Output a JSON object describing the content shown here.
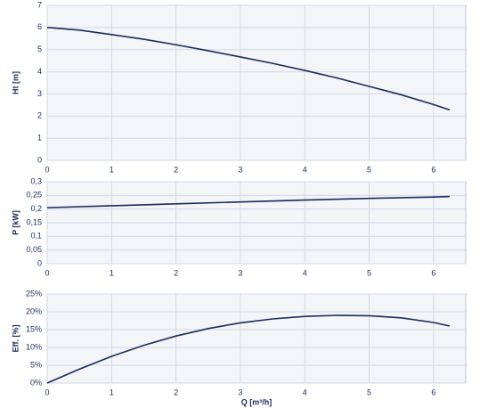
{
  "chart_data": [
    {
      "type": "line",
      "ylabel": "Ht [m]",
      "x": [
        0,
        0.5,
        1,
        1.5,
        2,
        2.5,
        3,
        3.5,
        4,
        4.5,
        5,
        5.5,
        6,
        6.25
      ],
      "values": [
        6.0,
        5.88,
        5.68,
        5.47,
        5.22,
        4.95,
        4.67,
        4.38,
        4.06,
        3.72,
        3.34,
        2.96,
        2.52,
        2.28
      ],
      "color": "#1b2a5c",
      "xlim": [
        0,
        6.5
      ],
      "xticks": [
        0,
        1,
        2,
        3,
        4,
        5,
        6
      ],
      "ylim": [
        0,
        7
      ],
      "yticks": [
        0,
        1,
        2,
        3,
        4,
        5,
        6,
        7
      ],
      "grid": true
    },
    {
      "type": "line",
      "ylabel": "P [kW]",
      "x": [
        0,
        1,
        2,
        3,
        4,
        5,
        6,
        6.25
      ],
      "values": [
        0.205,
        0.212,
        0.219,
        0.226,
        0.233,
        0.239,
        0.244,
        0.246
      ],
      "color": "#1b2a5c",
      "xlim": [
        0,
        6.5
      ],
      "xticks": [
        0,
        1,
        2,
        3,
        4,
        5,
        6
      ],
      "ylim": [
        0,
        0.3
      ],
      "yticks": [
        0,
        {
          "value": 0.05,
          "label": "0,05"
        },
        {
          "value": 0.1,
          "label": "0,1"
        },
        {
          "value": 0.15,
          "label": "0,15"
        },
        {
          "value": 0.2,
          "label": "0,2"
        },
        {
          "value": 0.25,
          "label": "0,25"
        },
        {
          "value": 0.3,
          "label": "0,3"
        }
      ],
      "grid": true
    },
    {
      "type": "line",
      "ylabel": "Eff. [%]",
      "xlabel": "Q [m³/h]",
      "x": [
        0,
        0.5,
        1,
        1.5,
        2,
        2.5,
        3,
        3.5,
        4,
        4.5,
        5,
        5.5,
        6,
        6.25
      ],
      "values": [
        0,
        3.9,
        7.5,
        10.6,
        13.2,
        15.3,
        16.9,
        18.0,
        18.7,
        19.0,
        18.9,
        18.3,
        17.0,
        16.0
      ],
      "color": "#1b2a5c",
      "xlim": [
        0,
        6.5
      ],
      "xticks": [
        0,
        1,
        2,
        3,
        4,
        5,
        6
      ],
      "ylim": [
        0,
        25
      ],
      "yticks": [
        {
          "value": 0,
          "label": "0%"
        },
        {
          "value": 5,
          "label": "5%"
        },
        {
          "value": 10,
          "label": "10%"
        },
        {
          "value": 15,
          "label": "15%"
        },
        {
          "value": 20,
          "label": "20%"
        },
        {
          "value": 25,
          "label": "25%"
        }
      ],
      "grid": true
    }
  ]
}
